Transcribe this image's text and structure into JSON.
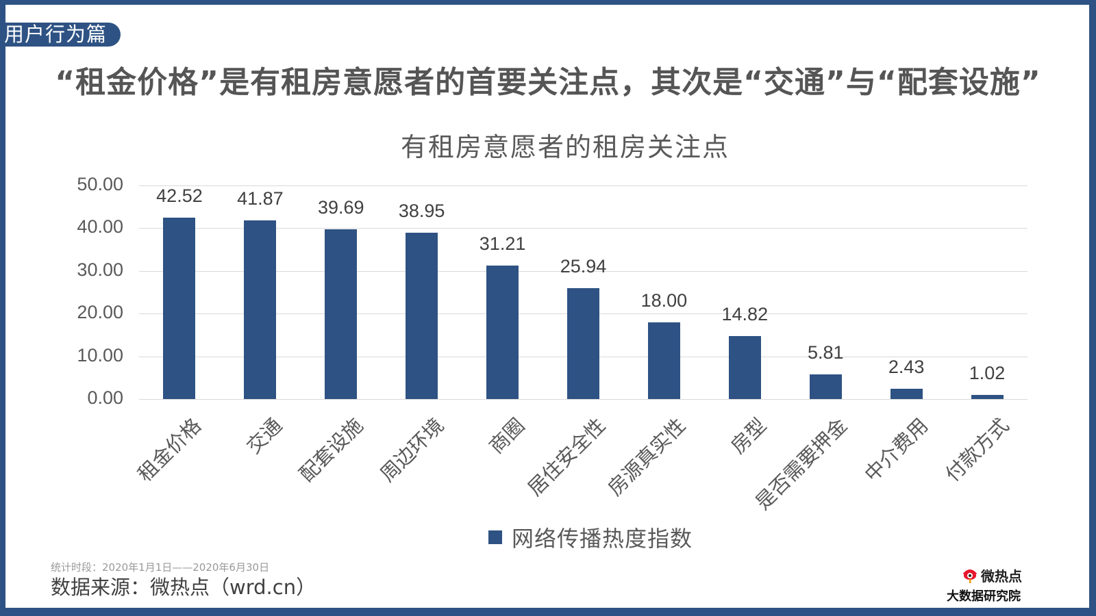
{
  "section_tag": "用户行为篇",
  "main_title": "“租金价格”是有租房意愿者的首要关注点，其次是“交通”与“配套设施”",
  "colors": {
    "frame": "#2e5283",
    "bar": "#2e5283",
    "gridline": "#d9d9d9",
    "title_text": "#555555"
  },
  "chart_data": {
    "type": "bar",
    "title": "有租房意愿者的租房关注点",
    "categories": [
      "租金价格",
      "交通",
      "配套设施",
      "周边环境",
      "商圈",
      "居住安全性",
      "房源真实性",
      "房型",
      "是否需要押金",
      "中介费用",
      "付款方式"
    ],
    "series": [
      {
        "name": "网络传播热度指数",
        "values": [
          42.52,
          41.87,
          39.69,
          38.95,
          31.21,
          25.94,
          18.0,
          14.82,
          5.81,
          2.43,
          1.02
        ]
      }
    ],
    "value_labels": [
      "42.52",
      "41.87",
      "39.69",
      "38.95",
      "31.21",
      "25.94",
      "18.00",
      "14.82",
      "5.81",
      "2.43",
      "1.02"
    ],
    "yticks": [
      "0.00",
      "10.00",
      "20.00",
      "30.00",
      "40.00",
      "50.00"
    ],
    "ylim": [
      0,
      50
    ],
    "xlabel": "",
    "ylabel": "",
    "grid": true,
    "legend_position": "bottom"
  },
  "legend": {
    "label": "网络传播热度指数"
  },
  "footer": {
    "period": "统计时段：2020年1月1日——2020年6月30日",
    "source": "数据来源：微热点（wrd.cn）"
  },
  "logo": {
    "brand": "微热点",
    "subtitle": "大数据研究院",
    "icon": "weibo-eye-icon"
  }
}
